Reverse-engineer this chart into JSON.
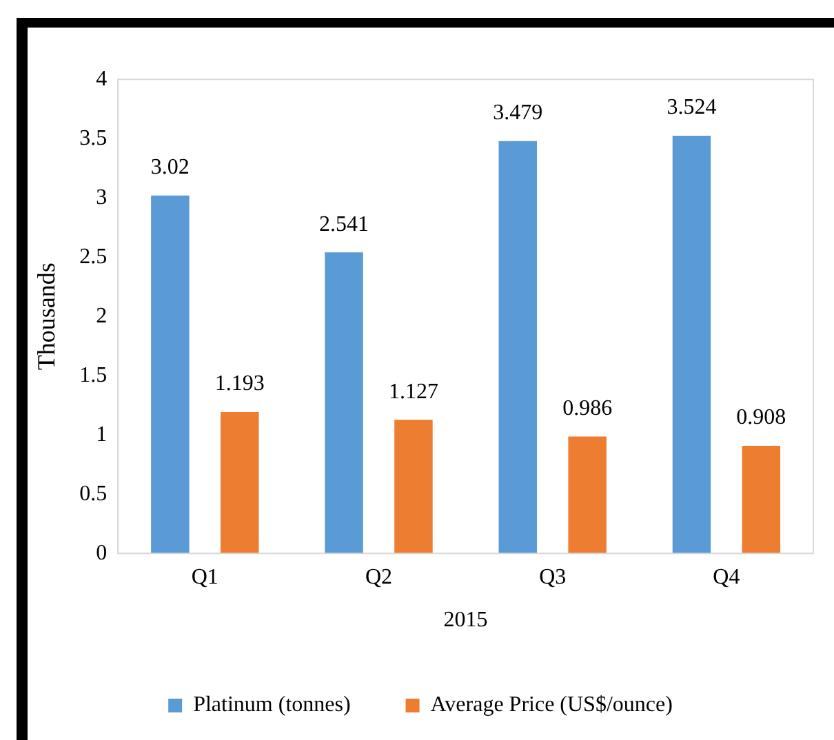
{
  "chart_data": {
    "type": "bar",
    "xlabel": "2015",
    "ylabel": "Thousands",
    "categories": [
      "Q1",
      "Q2",
      "Q3",
      "Q4"
    ],
    "series": [
      {
        "name": "Platinum (tonnes)",
        "color": "#5b9bd5",
        "values": [
          3.02,
          2.541,
          3.479,
          3.524
        ]
      },
      {
        "name": "Average Price (US$/ounce)",
        "color": "#ed7d31",
        "values": [
          1.193,
          1.127,
          0.986,
          0.908
        ]
      }
    ],
    "ylim": [
      0,
      4
    ],
    "yticks": [
      0,
      0.5,
      1,
      1.5,
      2,
      2.5,
      3,
      3.5,
      4
    ],
    "grid": false,
    "legend": "bottom",
    "data_labels": true
  }
}
